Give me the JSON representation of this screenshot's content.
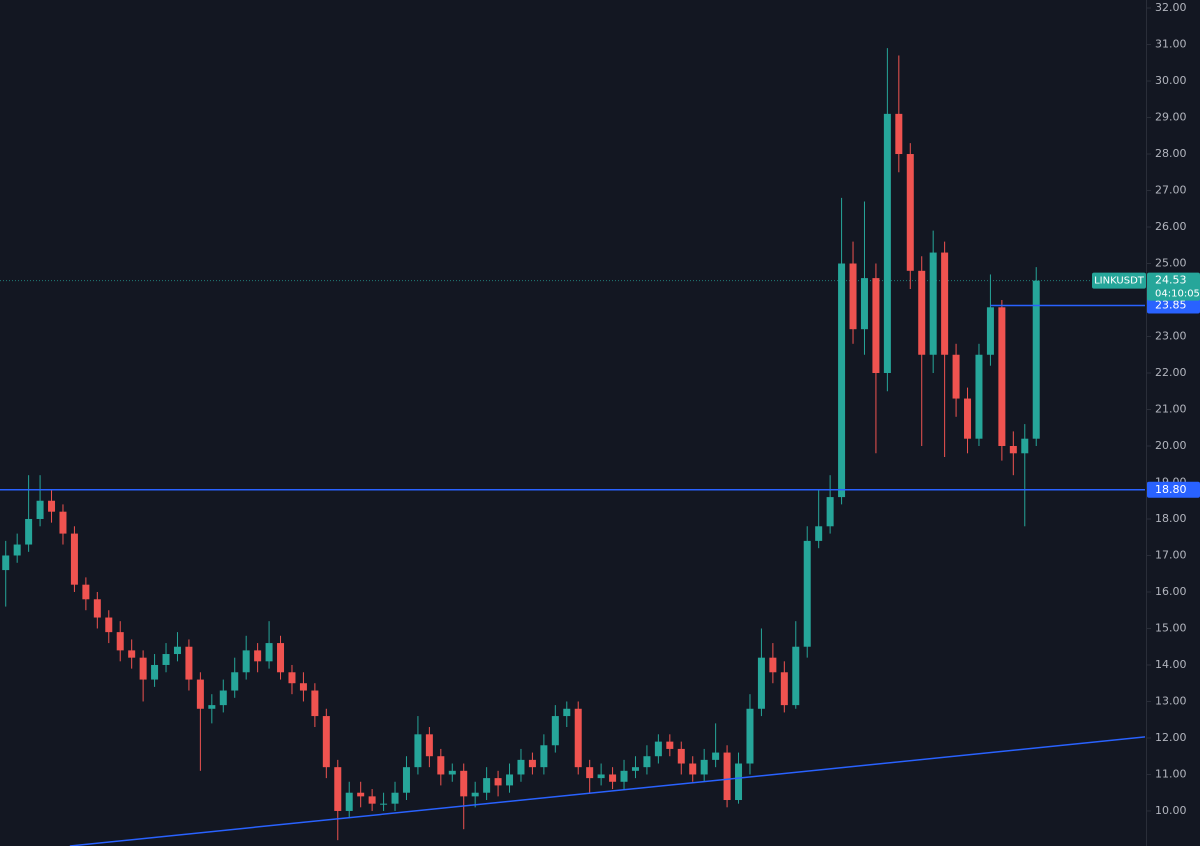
{
  "chart_data": {
    "type": "candlestick",
    "symbol": "LINKUSDT",
    "last_price": 24.53,
    "countdown": "04:10:05",
    "up_color": "#26a69a",
    "down_color": "#ef5350",
    "line_color": "#2962ff",
    "xlim": [
      -0.5,
      99.5
    ],
    "ylim": [
      9.04,
      32.22
    ],
    "yticks": [
      {
        "value": 10,
        "label": "10.00"
      },
      {
        "value": 11,
        "label": "11.00"
      },
      {
        "value": 12,
        "label": "12.00"
      },
      {
        "value": 13,
        "label": "13.00"
      },
      {
        "value": 14,
        "label": "14.00"
      },
      {
        "value": 15,
        "label": "15.00"
      },
      {
        "value": 16,
        "label": "16.00"
      },
      {
        "value": 17,
        "label": "17.00"
      },
      {
        "value": 18,
        "label": "18.00"
      },
      {
        "value": 19,
        "label": "19.00"
      },
      {
        "value": 20,
        "label": "20.00"
      },
      {
        "value": 21,
        "label": "21.00"
      },
      {
        "value": 22,
        "label": "22.00"
      },
      {
        "value": 23,
        "label": "23.00"
      },
      {
        "value": 24,
        "label": "24.00"
      },
      {
        "value": 25,
        "label": "25.00"
      },
      {
        "value": 26,
        "label": "26.00"
      },
      {
        "value": 27,
        "label": "27.00"
      },
      {
        "value": 28,
        "label": "28.00"
      },
      {
        "value": 29,
        "label": "29.00"
      },
      {
        "value": 30,
        "label": "30.00"
      },
      {
        "value": 31,
        "label": "31.00"
      },
      {
        "value": 32,
        "label": "32.00"
      }
    ],
    "grid": false,
    "levels": [
      {
        "value": 18.8,
        "label": "18.80",
        "start": -0.5
      },
      {
        "value": 23.85,
        "label": "23.85",
        "start": 86
      }
    ],
    "trendline": {
      "x": [
        5.6,
        99.5
      ],
      "y": [
        9.04,
        12.03
      ]
    },
    "open": [
      16.6,
      17.0,
      17.3,
      18.0,
      18.5,
      18.2,
      17.6,
      16.2,
      15.8,
      15.3,
      14.9,
      14.4,
      14.2,
      13.6,
      14.0,
      14.3,
      14.5,
      13.6,
      12.8,
      12.9,
      13.3,
      13.8,
      14.4,
      14.1,
      14.6,
      13.8,
      13.5,
      13.3,
      12.6,
      11.2,
      10.0,
      10.5,
      10.4,
      10.2,
      10.2,
      10.5,
      11.2,
      12.1,
      11.5,
      11.0,
      11.1,
      10.4,
      10.5,
      10.9,
      10.7,
      11.0,
      11.4,
      11.2,
      11.8,
      12.6,
      12.8,
      11.2,
      10.9,
      11.0,
      10.8,
      11.1,
      11.2,
      11.5,
      11.9,
      11.7,
      11.3,
      11.0,
      11.4,
      11.6,
      10.3,
      11.3,
      12.8,
      14.2,
      13.8,
      12.9,
      14.5,
      17.4,
      17.8,
      18.6,
      25.0,
      23.2,
      24.6,
      22.0,
      29.1,
      28.0,
      24.8,
      22.5,
      25.3,
      22.5,
      21.3,
      20.2,
      22.5,
      23.8,
      20.0,
      19.8,
      20.2
    ],
    "high": [
      17.4,
      17.6,
      19.2,
      19.2,
      18.8,
      18.4,
      17.8,
      16.4,
      16.0,
      15.5,
      15.2,
      14.7,
      14.4,
      14.3,
      14.6,
      14.9,
      14.7,
      13.8,
      13.2,
      13.6,
      14.2,
      14.8,
      14.6,
      15.2,
      14.8,
      14.0,
      13.8,
      13.5,
      12.8,
      11.4,
      10.8,
      10.8,
      10.6,
      10.5,
      10.8,
      11.5,
      12.6,
      12.3,
      11.7,
      11.3,
      11.3,
      10.8,
      11.2,
      11.1,
      11.3,
      11.7,
      11.6,
      12.1,
      12.9,
      13.0,
      13.0,
      11.4,
      11.3,
      11.2,
      11.4,
      11.5,
      11.8,
      12.1,
      12.1,
      11.9,
      11.5,
      11.7,
      12.4,
      11.8,
      11.6,
      13.2,
      15.0,
      14.6,
      14.1,
      15.2,
      17.8,
      18.8,
      19.2,
      26.8,
      25.6,
      26.7,
      25.0,
      30.9,
      30.7,
      28.3,
      25.2,
      25.9,
      25.6,
      22.8,
      21.6,
      22.8,
      24.7,
      24.0,
      20.4,
      20.6,
      24.9
    ],
    "low": [
      15.6,
      16.8,
      17.1,
      17.8,
      17.9,
      17.3,
      16.0,
      15.5,
      15.0,
      14.6,
      14.1,
      13.9,
      13.0,
      13.4,
      13.8,
      14.1,
      13.3,
      11.1,
      12.4,
      12.7,
      13.1,
      13.6,
      13.8,
      13.9,
      13.6,
      13.2,
      13.0,
      12.3,
      10.9,
      9.2,
      9.8,
      10.1,
      10.0,
      10.0,
      10.0,
      10.3,
      11.0,
      11.2,
      10.7,
      10.8,
      9.5,
      10.1,
      10.3,
      10.4,
      10.5,
      10.8,
      11.0,
      11.0,
      11.6,
      12.3,
      11.0,
      10.5,
      10.7,
      10.6,
      10.6,
      10.9,
      11.0,
      11.3,
      11.5,
      11.0,
      10.8,
      10.8,
      11.2,
      10.1,
      10.2,
      11.0,
      12.6,
      13.5,
      12.7,
      12.8,
      14.2,
      17.2,
      17.6,
      18.4,
      22.8,
      22.5,
      19.8,
      21.5,
      27.5,
      24.3,
      20.0,
      22.0,
      19.7,
      20.8,
      19.8,
      20.0,
      22.2,
      19.6,
      19.2,
      17.8,
      20.0
    ],
    "close": [
      17.0,
      17.3,
      18.0,
      18.5,
      18.2,
      17.6,
      16.2,
      15.8,
      15.3,
      14.9,
      14.4,
      14.2,
      13.6,
      14.0,
      14.3,
      14.5,
      13.6,
      12.8,
      12.9,
      13.3,
      13.8,
      14.4,
      14.1,
      14.6,
      13.8,
      13.5,
      13.3,
      12.6,
      11.2,
      10.0,
      10.5,
      10.4,
      10.2,
      10.2,
      10.5,
      11.2,
      12.1,
      11.5,
      11.0,
      11.1,
      10.4,
      10.5,
      10.9,
      10.7,
      11.0,
      11.4,
      11.2,
      11.8,
      12.6,
      12.8,
      11.2,
      10.9,
      11.0,
      10.8,
      11.1,
      11.2,
      11.5,
      11.9,
      11.7,
      11.3,
      11.0,
      11.4,
      11.6,
      10.3,
      11.3,
      12.8,
      14.2,
      13.8,
      12.9,
      14.5,
      17.4,
      17.8,
      18.6,
      25.0,
      23.2,
      24.6,
      22.0,
      29.1,
      28.0,
      24.8,
      22.5,
      25.3,
      22.5,
      21.3,
      20.2,
      22.5,
      23.8,
      20.0,
      19.8,
      20.2,
      24.53
    ]
  }
}
